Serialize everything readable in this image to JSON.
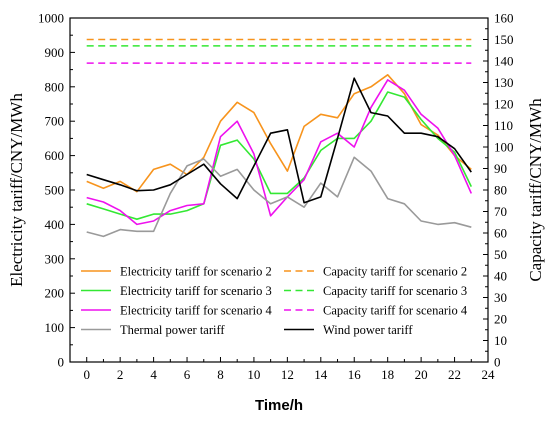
{
  "chart_data": {
    "type": "line",
    "xlabel": "Time/h",
    "ylabel_left": "Electricity tariff/CNY/MWh",
    "ylabel_right": "Capacity tariff/CNY/MWh",
    "x": [
      0,
      1,
      2,
      3,
      4,
      5,
      6,
      7,
      8,
      9,
      10,
      11,
      12,
      13,
      14,
      15,
      16,
      17,
      18,
      19,
      20,
      21,
      22,
      23
    ],
    "xlim": [
      -1,
      24
    ],
    "x_ticks": [
      0,
      2,
      4,
      6,
      8,
      10,
      12,
      14,
      16,
      18,
      20,
      22,
      24
    ],
    "ylim_left": [
      0,
      1000
    ],
    "y_ticks_left": [
      0,
      100,
      200,
      300,
      400,
      500,
      600,
      700,
      800,
      900,
      1000
    ],
    "ylim_right": [
      0,
      160
    ],
    "y_ticks_right": [
      0,
      10,
      20,
      30,
      40,
      50,
      60,
      70,
      80,
      90,
      100,
      110,
      120,
      130,
      140,
      150,
      160
    ],
    "grid": false,
    "series": [
      {
        "name": "Electricity tariff for scenario 2",
        "axis": "left",
        "style": "solid",
        "color": "#f7941d",
        "values": [
          525,
          505,
          525,
          495,
          560,
          575,
          545,
          595,
          700,
          755,
          725,
          635,
          555,
          685,
          720,
          710,
          780,
          800,
          835,
          780,
          690,
          660,
          600,
          560
        ]
      },
      {
        "name": "Capacity tariff for scenario 2",
        "axis": "right",
        "style": "dashed",
        "color": "#f7941d",
        "values": [
          150,
          150,
          150,
          150,
          150,
          150,
          150,
          150,
          150,
          150,
          150,
          150,
          150,
          150,
          150,
          150,
          150,
          150,
          150,
          150,
          150,
          150,
          150,
          150
        ]
      },
      {
        "name": "Electricity tariff for scenario 3",
        "axis": "left",
        "style": "solid",
        "color": "#33e833",
        "values": [
          460,
          445,
          430,
          415,
          430,
          430,
          440,
          460,
          630,
          645,
          590,
          490,
          490,
          535,
          615,
          650,
          650,
          700,
          785,
          770,
          705,
          650,
          610,
          510
        ]
      },
      {
        "name": "Capacity tariff for scenario 3",
        "axis": "right",
        "style": "dashed",
        "color": "#33e833",
        "values": [
          147,
          147,
          147,
          147,
          147,
          147,
          147,
          147,
          147,
          147,
          147,
          147,
          147,
          147,
          147,
          147,
          147,
          147,
          147,
          147,
          147,
          147,
          147,
          147
        ]
      },
      {
        "name": "Electricity tariff for scenario 4",
        "axis": "left",
        "style": "solid",
        "color": "#ee11ee",
        "values": [
          478,
          465,
          440,
          400,
          410,
          440,
          455,
          460,
          655,
          700,
          605,
          425,
          480,
          530,
          640,
          665,
          625,
          740,
          820,
          790,
          720,
          680,
          600,
          490
        ]
      },
      {
        "name": "Capacity tariff for scenario 4",
        "axis": "right",
        "style": "dashed",
        "color": "#ee11ee",
        "values": [
          139,
          139,
          139,
          139,
          139,
          139,
          139,
          139,
          139,
          139,
          139,
          139,
          139,
          139,
          139,
          139,
          139,
          139,
          139,
          139,
          139,
          139,
          139,
          139
        ]
      },
      {
        "name": "Thermal power tariff",
        "axis": "left",
        "style": "solid",
        "color": "#9a9a9a",
        "values": [
          378,
          365,
          385,
          380,
          380,
          490,
          570,
          590,
          540,
          560,
          500,
          460,
          480,
          450,
          520,
          480,
          595,
          555,
          475,
          460,
          410,
          400,
          405,
          392
        ]
      },
      {
        "name": "Wind power tariff",
        "axis": "left",
        "style": "solid",
        "color": "#000000",
        "values": [
          545,
          530,
          515,
          498,
          500,
          515,
          545,
          575,
          518,
          475,
          570,
          665,
          675,
          463,
          480,
          650,
          825,
          725,
          715,
          665,
          665,
          655,
          620,
          552
        ]
      }
    ],
    "legend_placement": "lower-center, two columns"
  }
}
